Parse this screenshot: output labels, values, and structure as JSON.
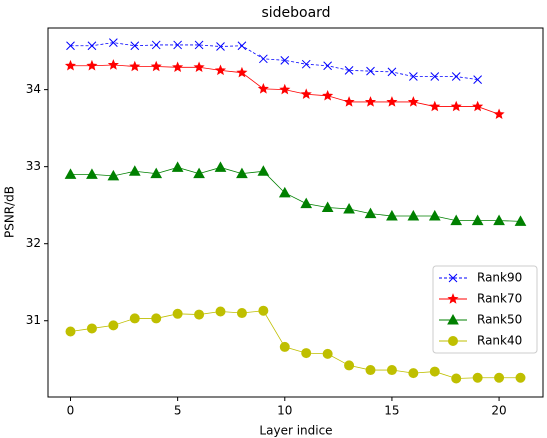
{
  "chart_data": {
    "type": "line",
    "title": "sideboard",
    "x_label": "Layer indice",
    "y_label": "PSNR/dB",
    "xlim": [
      -1.05,
      22.05
    ],
    "ylim": [
      30.01,
      34.8
    ],
    "xticks": [
      0,
      5,
      10,
      15,
      20
    ],
    "yticks": [
      31,
      32,
      33,
      34
    ],
    "legend": "lower right",
    "series": [
      {
        "name": "Rank90",
        "color": "#0000ff",
        "marker": "x",
        "linestyle": "dashed",
        "x": [
          0,
          1,
          2,
          3,
          4,
          5,
          6,
          7,
          8,
          9,
          10,
          11,
          12,
          13,
          14,
          15,
          16,
          17,
          18,
          19
        ],
        "values": [
          34.57,
          34.57,
          34.61,
          34.57,
          34.58,
          34.58,
          34.58,
          34.56,
          34.57,
          34.4,
          34.38,
          34.33,
          34.31,
          34.25,
          34.24,
          34.23,
          34.17,
          34.17,
          34.17,
          34.13
        ]
      },
      {
        "name": "Rank70",
        "color": "#ff0000",
        "marker": "star",
        "linestyle": "solid",
        "x": [
          0,
          1,
          2,
          3,
          4,
          5,
          6,
          7,
          8,
          9,
          10,
          11,
          12,
          13,
          14,
          15,
          16,
          17,
          18,
          19,
          20
        ],
        "values": [
          34.31,
          34.31,
          34.32,
          34.3,
          34.3,
          34.29,
          34.29,
          34.25,
          34.22,
          34.01,
          34.0,
          33.94,
          33.92,
          33.84,
          33.84,
          33.84,
          33.84,
          33.78,
          33.78,
          33.78,
          33.68
        ]
      },
      {
        "name": "Rank50",
        "color": "#008000",
        "marker": "triangle",
        "linestyle": "solid",
        "x": [
          0,
          1,
          2,
          3,
          4,
          5,
          6,
          7,
          8,
          9,
          10,
          11,
          12,
          13,
          14,
          15,
          16,
          17,
          18,
          19,
          20,
          21
        ],
        "values": [
          32.9,
          32.9,
          32.88,
          32.94,
          32.91,
          32.99,
          32.91,
          32.99,
          32.91,
          32.94,
          32.66,
          32.52,
          32.47,
          32.45,
          32.39,
          32.36,
          32.36,
          32.36,
          32.3,
          32.3,
          32.3,
          32.29
        ]
      },
      {
        "name": "Rank40",
        "color": "#bfbf00",
        "marker": "circle",
        "linestyle": "solid",
        "x": [
          0,
          1,
          2,
          3,
          4,
          5,
          6,
          7,
          8,
          9,
          10,
          11,
          12,
          13,
          14,
          15,
          16,
          17,
          18,
          19,
          20,
          21
        ],
        "values": [
          30.86,
          30.9,
          30.94,
          31.03,
          31.03,
          31.09,
          31.08,
          31.12,
          31.1,
          31.13,
          30.66,
          30.58,
          30.57,
          30.42,
          30.36,
          30.36,
          30.32,
          30.34,
          30.25,
          30.26,
          30.26,
          30.26
        ]
      }
    ]
  }
}
